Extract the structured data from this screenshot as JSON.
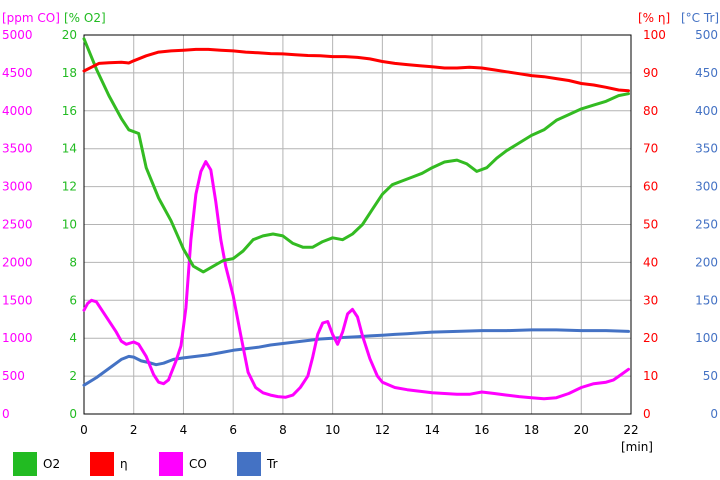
{
  "chart_data": {
    "type": "line",
    "xlabel": "[min]",
    "xlim": [
      0,
      22
    ],
    "x_ticks": [
      "0",
      "2",
      "4",
      "6",
      "8",
      "10",
      "12",
      "14",
      "16",
      "18",
      "20",
      "22"
    ],
    "grid": true,
    "legend_position": "bottom",
    "axes": {
      "co": {
        "unit": "[ppm CO]",
        "range": [
          0,
          5000
        ],
        "color": "#ff00ff",
        "ticks": [
          "0",
          "500",
          "1000",
          "1500",
          "2000",
          "2500",
          "3000",
          "3500",
          "4000",
          "4500",
          "5000"
        ]
      },
      "o2": {
        "unit": "[% O2]",
        "range": [
          0,
          20
        ],
        "color": "#22bb22",
        "ticks": [
          "0",
          "2",
          "4",
          "6",
          "8",
          "10",
          "12",
          "14",
          "16",
          "18",
          "20"
        ]
      },
      "eta": {
        "unit": "[% η]",
        "range": [
          0,
          100
        ],
        "color": "#ff0000",
        "ticks": [
          "0",
          "10",
          "20",
          "30",
          "40",
          "50",
          "60",
          "70",
          "80",
          "90",
          "100"
        ]
      },
      "tr": {
        "unit": "[°C Tr]",
        "range": [
          0,
          500
        ],
        "color": "#4472c4",
        "ticks": [
          "0",
          "50",
          "100",
          "150",
          "200",
          "250",
          "300",
          "350",
          "400",
          "450",
          "500"
        ]
      }
    },
    "series": [
      {
        "name": "O2",
        "axis": "o2",
        "color": "#33bb22",
        "points": [
          [
            0,
            19.8
          ],
          [
            0.5,
            18.2
          ],
          [
            1,
            16.8
          ],
          [
            1.5,
            15.6
          ],
          [
            1.8,
            15.0
          ],
          [
            2.2,
            14.8
          ],
          [
            2.5,
            13.0
          ],
          [
            3,
            11.4
          ],
          [
            3.5,
            10.2
          ],
          [
            4,
            8.7
          ],
          [
            4.4,
            7.8
          ],
          [
            4.8,
            7.5
          ],
          [
            5.2,
            7.8
          ],
          [
            5.6,
            8.1
          ],
          [
            6,
            8.2
          ],
          [
            6.4,
            8.6
          ],
          [
            6.8,
            9.2
          ],
          [
            7.2,
            9.4
          ],
          [
            7.6,
            9.5
          ],
          [
            8,
            9.4
          ],
          [
            8.4,
            9.0
          ],
          [
            8.8,
            8.8
          ],
          [
            9.2,
            8.8
          ],
          [
            9.6,
            9.1
          ],
          [
            10,
            9.3
          ],
          [
            10.4,
            9.2
          ],
          [
            10.8,
            9.5
          ],
          [
            11.2,
            10.0
          ],
          [
            11.6,
            10.8
          ],
          [
            12,
            11.6
          ],
          [
            12.4,
            12.1
          ],
          [
            12.8,
            12.3
          ],
          [
            13.2,
            12.5
          ],
          [
            13.6,
            12.7
          ],
          [
            14,
            13.0
          ],
          [
            14.5,
            13.3
          ],
          [
            15,
            13.4
          ],
          [
            15.4,
            13.2
          ],
          [
            15.8,
            12.8
          ],
          [
            16.2,
            13.0
          ],
          [
            16.6,
            13.5
          ],
          [
            17,
            13.9
          ],
          [
            17.5,
            14.3
          ],
          [
            18,
            14.7
          ],
          [
            18.5,
            15.0
          ],
          [
            19,
            15.5
          ],
          [
            19.5,
            15.8
          ],
          [
            20,
            16.1
          ],
          [
            20.5,
            16.3
          ],
          [
            21,
            16.5
          ],
          [
            21.5,
            16.8
          ],
          [
            21.9,
            16.9
          ]
        ]
      },
      {
        "name": "η",
        "axis": "eta",
        "color": "#ff0000",
        "points": [
          [
            0,
            90.5
          ],
          [
            0.3,
            91.5
          ],
          [
            0.6,
            92.5
          ],
          [
            1,
            92.7
          ],
          [
            1.5,
            92.8
          ],
          [
            1.8,
            92.6
          ],
          [
            2,
            93.2
          ],
          [
            2.5,
            94.5
          ],
          [
            3,
            95.5
          ],
          [
            3.5,
            95.8
          ],
          [
            4,
            96.0
          ],
          [
            4.5,
            96.2
          ],
          [
            5,
            96.2
          ],
          [
            5.5,
            96.0
          ],
          [
            6,
            95.8
          ],
          [
            6.5,
            95.5
          ],
          [
            7,
            95.3
          ],
          [
            7.5,
            95.1
          ],
          [
            8,
            95.0
          ],
          [
            8.5,
            94.8
          ],
          [
            9,
            94.6
          ],
          [
            9.5,
            94.5
          ],
          [
            10,
            94.3
          ],
          [
            10.5,
            94.3
          ],
          [
            11,
            94.1
          ],
          [
            11.5,
            93.7
          ],
          [
            12,
            93.0
          ],
          [
            12.5,
            92.5
          ],
          [
            13,
            92.2
          ],
          [
            13.5,
            91.9
          ],
          [
            14,
            91.6
          ],
          [
            14.5,
            91.3
          ],
          [
            15,
            91.3
          ],
          [
            15.5,
            91.5
          ],
          [
            16,
            91.3
          ],
          [
            16.5,
            90.8
          ],
          [
            17,
            90.3
          ],
          [
            17.5,
            89.8
          ],
          [
            18,
            89.3
          ],
          [
            18.5,
            89.0
          ],
          [
            19,
            88.5
          ],
          [
            19.5,
            88.0
          ],
          [
            20,
            87.2
          ],
          [
            20.5,
            86.8
          ],
          [
            21,
            86.2
          ],
          [
            21.5,
            85.5
          ],
          [
            21.9,
            85.3
          ]
        ]
      },
      {
        "name": "CO",
        "axis": "co",
        "color": "#ff00ff",
        "points": [
          [
            0,
            1370
          ],
          [
            0.15,
            1460
          ],
          [
            0.3,
            1500
          ],
          [
            0.5,
            1480
          ],
          [
            0.7,
            1380
          ],
          [
            1,
            1230
          ],
          [
            1.3,
            1080
          ],
          [
            1.5,
            960
          ],
          [
            1.7,
            920
          ],
          [
            2,
            950
          ],
          [
            2.2,
            920
          ],
          [
            2.5,
            760
          ],
          [
            2.8,
            520
          ],
          [
            3,
            420
          ],
          [
            3.2,
            400
          ],
          [
            3.4,
            450
          ],
          [
            3.7,
            700
          ],
          [
            3.9,
            900
          ],
          [
            4.1,
            1400
          ],
          [
            4.3,
            2300
          ],
          [
            4.5,
            2900
          ],
          [
            4.7,
            3200
          ],
          [
            4.9,
            3330
          ],
          [
            5.1,
            3220
          ],
          [
            5.3,
            2800
          ],
          [
            5.5,
            2300
          ],
          [
            5.7,
            1950
          ],
          [
            6,
            1560
          ],
          [
            6.3,
            1050
          ],
          [
            6.6,
            550
          ],
          [
            6.9,
            350
          ],
          [
            7.2,
            280
          ],
          [
            7.5,
            250
          ],
          [
            7.8,
            230
          ],
          [
            8.1,
            220
          ],
          [
            8.4,
            250
          ],
          [
            8.7,
            350
          ],
          [
            9,
            500
          ],
          [
            9.2,
            750
          ],
          [
            9.4,
            1050
          ],
          [
            9.6,
            1200
          ],
          [
            9.8,
            1220
          ],
          [
            10,
            1050
          ],
          [
            10.2,
            920
          ],
          [
            10.4,
            1080
          ],
          [
            10.6,
            1320
          ],
          [
            10.8,
            1380
          ],
          [
            11,
            1280
          ],
          [
            11.2,
            1030
          ],
          [
            11.5,
            730
          ],
          [
            11.8,
            500
          ],
          [
            12,
            420
          ],
          [
            12.5,
            350
          ],
          [
            13,
            320
          ],
          [
            13.5,
            300
          ],
          [
            14,
            280
          ],
          [
            15,
            260
          ],
          [
            15.5,
            260
          ],
          [
            16,
            290
          ],
          [
            16.5,
            270
          ],
          [
            17,
            250
          ],
          [
            17.5,
            230
          ],
          [
            18,
            215
          ],
          [
            18.5,
            200
          ],
          [
            19,
            215
          ],
          [
            19.5,
            270
          ],
          [
            20,
            350
          ],
          [
            20.5,
            400
          ],
          [
            21,
            420
          ],
          [
            21.3,
            450
          ],
          [
            21.6,
            520
          ],
          [
            21.9,
            590
          ]
        ]
      },
      {
        "name": "Tr",
        "axis": "tr",
        "color": "#4472c4",
        "points": [
          [
            0,
            38
          ],
          [
            0.5,
            48
          ],
          [
            1,
            60
          ],
          [
            1.5,
            72
          ],
          [
            1.8,
            76
          ],
          [
            2,
            75
          ],
          [
            2.3,
            70
          ],
          [
            2.6,
            68
          ],
          [
            2.9,
            65
          ],
          [
            3.2,
            67
          ],
          [
            3.6,
            72
          ],
          [
            4,
            74
          ],
          [
            4.5,
            76
          ],
          [
            5,
            78
          ],
          [
            5.5,
            81
          ],
          [
            6,
            84
          ],
          [
            6.5,
            86
          ],
          [
            7,
            88
          ],
          [
            7.5,
            91
          ],
          [
            8,
            93
          ],
          [
            8.5,
            95
          ],
          [
            9,
            97
          ],
          [
            9.5,
            99
          ],
          [
            10,
            100
          ],
          [
            10.5,
            101
          ],
          [
            11,
            102
          ],
          [
            11.5,
            103
          ],
          [
            12,
            104
          ],
          [
            12.5,
            105
          ],
          [
            13,
            106
          ],
          [
            13.5,
            107
          ],
          [
            14,
            108
          ],
          [
            15,
            109
          ],
          [
            16,
            110
          ],
          [
            17,
            110
          ],
          [
            18,
            111
          ],
          [
            19,
            111
          ],
          [
            20,
            110
          ],
          [
            21,
            110
          ],
          [
            21.9,
            109
          ]
        ]
      }
    ]
  },
  "legend": [
    {
      "label": "O2",
      "color": "#22bb22"
    },
    {
      "label": "η",
      "color": "#ff0000"
    },
    {
      "label": "CO",
      "color": "#ff00ff"
    },
    {
      "label": "Tr",
      "color": "#4472c4"
    }
  ]
}
